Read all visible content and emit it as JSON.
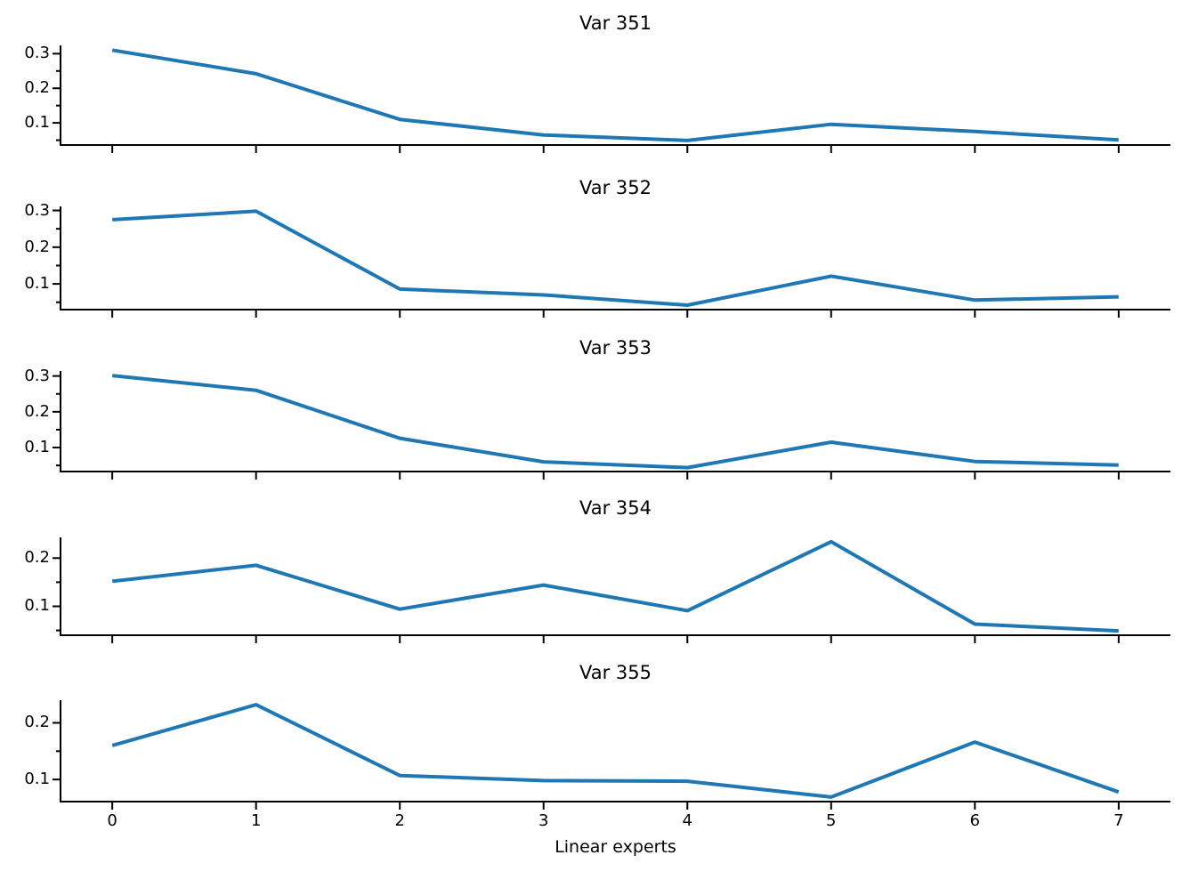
{
  "figure": {
    "xlabel": "Linear experts",
    "line_color": "#1f77b4",
    "axis_color": "#000000",
    "background": "#ffffff",
    "x_tick_labels": [
      "0",
      "1",
      "2",
      "3",
      "4",
      "5",
      "6",
      "7"
    ],
    "x_tick_labels_shown_on": "bottom-subplot-only"
  },
  "chart_data": [
    {
      "type": "line",
      "title": "Var 351",
      "x": [
        0,
        1,
        2,
        3,
        4,
        5,
        6,
        7
      ],
      "values": [
        0.31,
        0.242,
        0.11,
        0.065,
        0.049,
        0.096,
        0.075,
        0.051
      ],
      "ytick_labels": [
        "0.1",
        "0.2",
        "0.3"
      ],
      "yticks": [
        0.1,
        0.2,
        0.3
      ],
      "ylim": [
        0.036,
        0.324
      ],
      "xlim": [
        -0.36,
        7.36
      ],
      "grid": false,
      "legend": "none"
    },
    {
      "type": "line",
      "title": "Var 352",
      "x": [
        0,
        1,
        2,
        3,
        4,
        5,
        6,
        7
      ],
      "values": [
        0.275,
        0.298,
        0.086,
        0.07,
        0.042,
        0.121,
        0.056,
        0.065
      ],
      "ytick_labels": [
        "0.1",
        "0.2",
        "0.3"
      ],
      "yticks": [
        0.1,
        0.2,
        0.3
      ],
      "ylim": [
        0.03,
        0.311
      ],
      "xlim": [
        -0.36,
        7.36
      ],
      "grid": false,
      "legend": "none"
    },
    {
      "type": "line",
      "title": "Var 353",
      "x": [
        0,
        1,
        2,
        3,
        4,
        5,
        6,
        7
      ],
      "values": [
        0.301,
        0.26,
        0.126,
        0.06,
        0.044,
        0.115,
        0.061,
        0.051
      ],
      "ytick_labels": [
        "0.1",
        "0.2",
        "0.3"
      ],
      "yticks": [
        0.1,
        0.2,
        0.3
      ],
      "ylim": [
        0.033,
        0.314
      ],
      "xlim": [
        -0.36,
        7.36
      ],
      "grid": false,
      "legend": "none"
    },
    {
      "type": "line",
      "title": "Var 354",
      "x": [
        0,
        1,
        2,
        3,
        4,
        5,
        6,
        7
      ],
      "values": [
        0.152,
        0.185,
        0.094,
        0.144,
        0.091,
        0.234,
        0.063,
        0.049
      ],
      "ytick_labels": [
        "0.1",
        "0.2"
      ],
      "yticks": [
        0.1,
        0.2
      ],
      "ylim": [
        0.04,
        0.243
      ],
      "xlim": [
        -0.36,
        7.36
      ],
      "grid": false,
      "legend": "none"
    },
    {
      "type": "line",
      "title": "Var 355",
      "x": [
        0,
        1,
        2,
        3,
        4,
        5,
        6,
        7
      ],
      "values": [
        0.16,
        0.232,
        0.107,
        0.098,
        0.097,
        0.069,
        0.166,
        0.078
      ],
      "ytick_labels": [
        "0.1",
        "0.2"
      ],
      "yticks": [
        0.1,
        0.2
      ],
      "ylim": [
        0.061,
        0.24
      ],
      "xlim": [
        -0.36,
        7.36
      ],
      "grid": false,
      "legend": "none"
    }
  ]
}
